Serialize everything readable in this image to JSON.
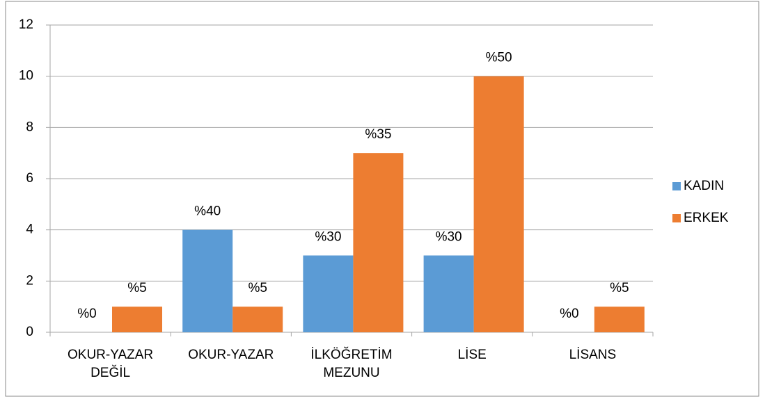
{
  "chart_data": {
    "type": "bar",
    "categories": [
      "OKUR-YAZAR DEĞİL",
      "OKUR-YAZAR",
      "İLKÖĞRETİM MEZUNU",
      "LİSE",
      "LİSANS"
    ],
    "series": [
      {
        "name": "KADIN",
        "color": "#5b9bd5",
        "values": [
          0,
          4,
          3,
          3,
          0
        ],
        "data_labels": [
          "%0",
          "%40",
          "%30",
          "%30",
          "%0"
        ]
      },
      {
        "name": "ERKEK",
        "color": "#ed7d31",
        "values": [
          1,
          1,
          7,
          10,
          1
        ],
        "data_labels": [
          "%5",
          "%5",
          "%35",
          "%50",
          "%5"
        ]
      }
    ],
    "ylim": [
      0,
      12
    ],
    "yticks": [
      0,
      2,
      4,
      6,
      8,
      10,
      12
    ],
    "grid": true,
    "legend": "right"
  }
}
